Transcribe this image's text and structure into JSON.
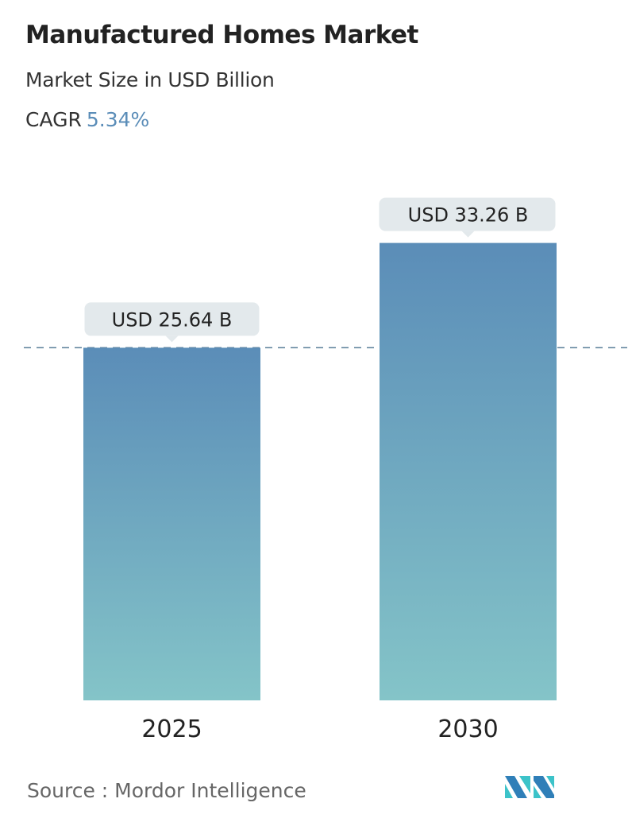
{
  "title": "Manufactured Homes Market",
  "subtitle": "Market Size in USD Billion",
  "cagr_label": "CAGR",
  "cagr_value": "5.34%",
  "source": "Source :  Mordor Intelligence",
  "logo_text": "Mordor Intelligence",
  "colors": {
    "bar_top": "#5b8db8",
    "bar_bottom": "#84c4c8",
    "accent": "#5b8db8",
    "label_bg": "#e3e9ec"
  },
  "chart_data": {
    "type": "bar",
    "categories": [
      "2025",
      "2030"
    ],
    "values": [
      25.64,
      33.26
    ],
    "data_labels": [
      "USD 25.64 B",
      "USD 33.26 B"
    ],
    "title": "Manufactured Homes Market",
    "ylabel": "Market Size in USD Billion",
    "reference_line": 25.64,
    "grid": false
  }
}
